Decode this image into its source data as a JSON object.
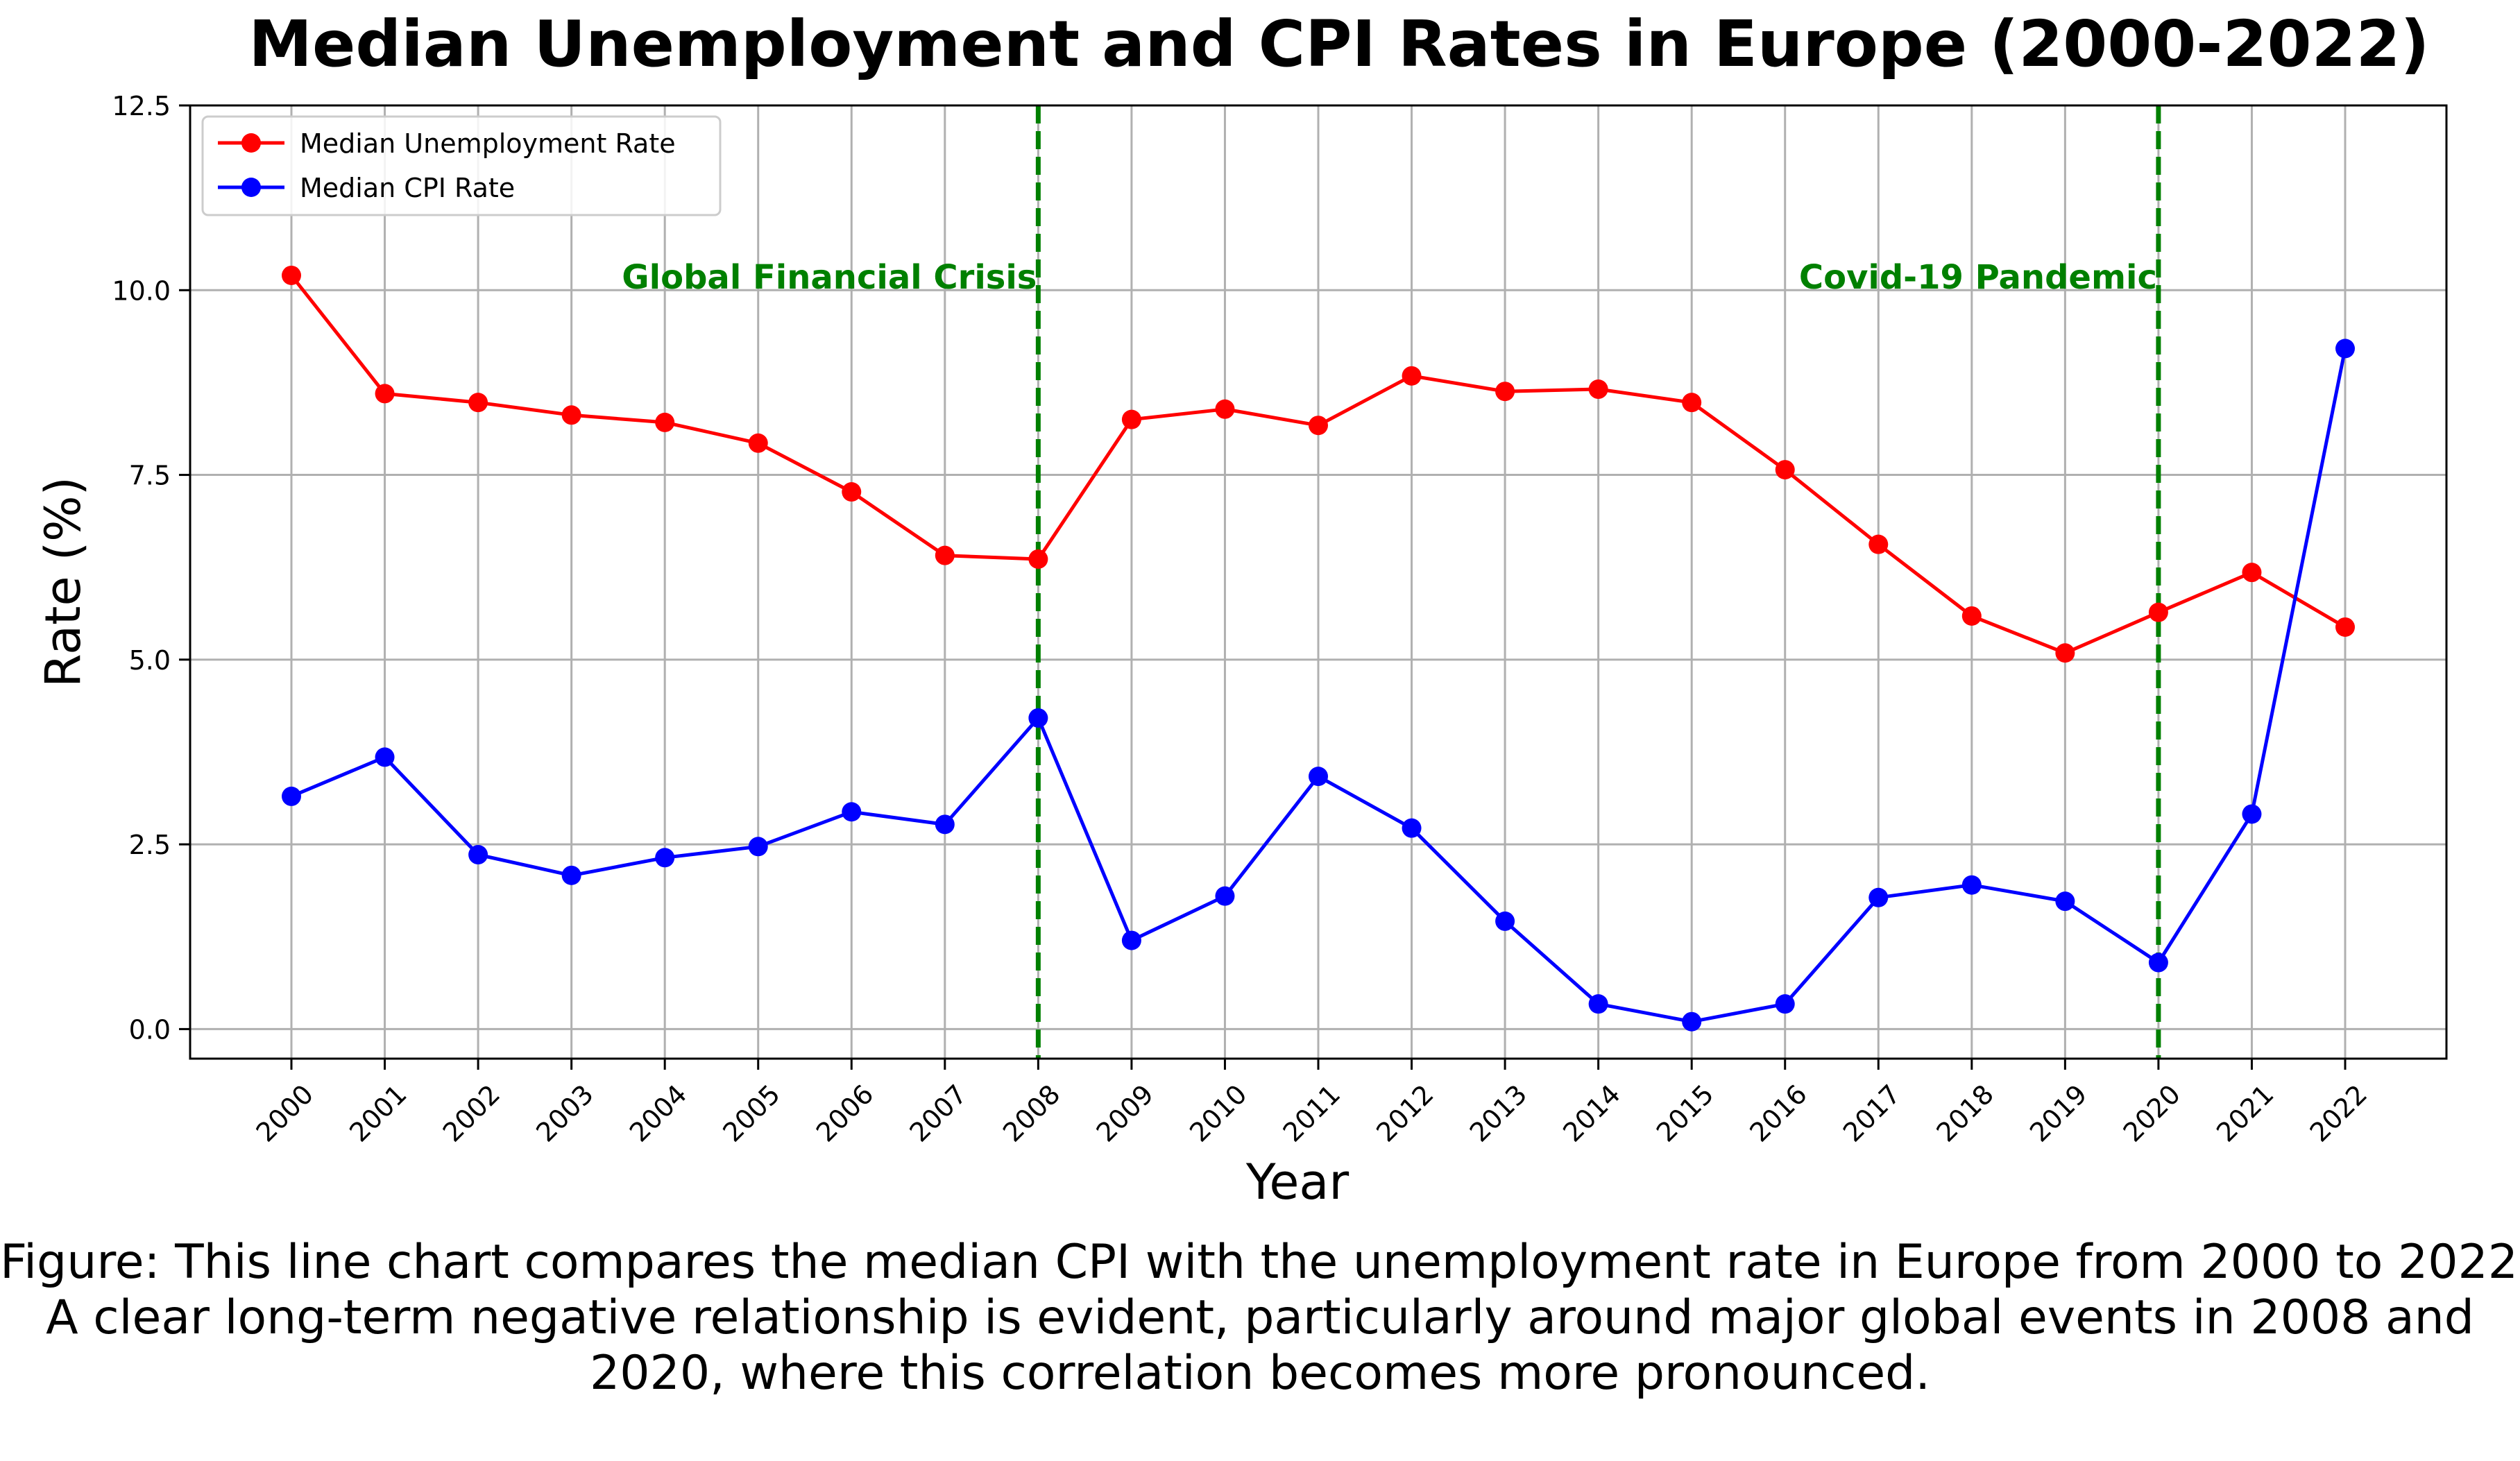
{
  "chart_data": {
    "type": "line",
    "title": "Median Unemployment and CPI Rates in Europe (2000-2022)",
    "xlabel": "Year",
    "ylabel": "Rate (%)",
    "x": [
      2000,
      2001,
      2002,
      2003,
      2004,
      2005,
      2006,
      2007,
      2008,
      2009,
      2010,
      2011,
      2012,
      2013,
      2014,
      2015,
      2016,
      2017,
      2018,
      2019,
      2020,
      2021,
      2022
    ],
    "x_tick_labels": [
      "2000",
      "2001",
      "2002",
      "2003",
      "2004",
      "2005",
      "2006",
      "2007",
      "2008",
      "2009",
      "2010",
      "2011",
      "2012",
      "2013",
      "2014",
      "2015",
      "2016",
      "2017",
      "2018",
      "2019",
      "2020",
      "2021",
      "2022"
    ],
    "ylim": [
      -0.4,
      12.5
    ],
    "y_ticks": [
      0.0,
      2.5,
      5.0,
      7.5,
      10.0,
      12.5
    ],
    "y_tick_labels": [
      "0.0",
      "2.5",
      "5.0",
      "7.5",
      "10.0",
      "12.5"
    ],
    "grid": true,
    "legend_position": "upper-left",
    "series": [
      {
        "name": "Median Unemployment Rate",
        "color": "#ff0000",
        "values": [
          10.2,
          8.6,
          8.48,
          8.31,
          8.21,
          7.93,
          7.27,
          6.41,
          6.36,
          8.25,
          8.39,
          8.17,
          8.84,
          8.63,
          8.66,
          8.48,
          7.57,
          6.56,
          5.59,
          5.09,
          5.64,
          6.18,
          5.44
        ]
      },
      {
        "name": "Median CPI Rate",
        "color": "#0000ff",
        "values": [
          3.15,
          3.68,
          2.36,
          2.08,
          2.32,
          2.47,
          2.94,
          2.77,
          4.21,
          1.2,
          1.8,
          3.42,
          2.72,
          1.46,
          0.34,
          0.1,
          0.34,
          1.78,
          1.95,
          1.73,
          0.9,
          2.91,
          9.21
        ]
      }
    ],
    "annotations": [
      {
        "x": 2008,
        "label": "Global Financial Crisis",
        "color": "#008000"
      },
      {
        "x": 2020,
        "label": "Covid-19 Pandemic",
        "color": "#008000"
      }
    ]
  },
  "caption": {
    "line1": "Figure: This line chart compares the median CPI with the unemployment rate in Europe from 2000 to 2022.",
    "line2": "A clear long-term negative relationship is evident, particularly around major global events in 2008 and",
    "line3": "2020, where this correlation becomes more pronounced."
  }
}
